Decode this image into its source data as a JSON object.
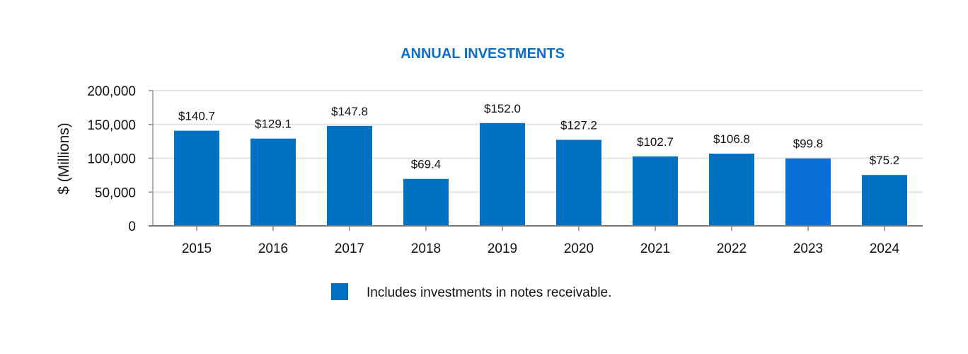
{
  "chart_data": {
    "type": "bar",
    "title": "ANNUAL INVESTMENTS",
    "xlabel": "",
    "ylabel": "$ (Millions)",
    "ylim": [
      0,
      200000
    ],
    "yticks": [
      "0",
      "50,000",
      "100,000",
      "150,000",
      "200,000"
    ],
    "ytick_values": [
      0,
      50000,
      100000,
      150000,
      200000
    ],
    "grid": true,
    "categories": [
      "2015",
      "2016",
      "2017",
      "2018",
      "2019",
      "2020",
      "2021",
      "2022",
      "2023",
      "2024"
    ],
    "values": [
      140700,
      129100,
      147800,
      69400,
      152000,
      127200,
      102700,
      106800,
      99800,
      75200
    ],
    "data_labels": [
      "$140.7",
      "$129.1",
      "$147.8",
      "$69.4",
      "$152.0",
      "$127.2",
      "$102.7",
      "$106.8",
      "$99.8",
      "$75.2"
    ],
    "bar_color": "#0070c0",
    "highlight_color": "#0a6fd6",
    "legend": {
      "position": "bottom",
      "label": "Includes investments in notes receivable."
    }
  }
}
